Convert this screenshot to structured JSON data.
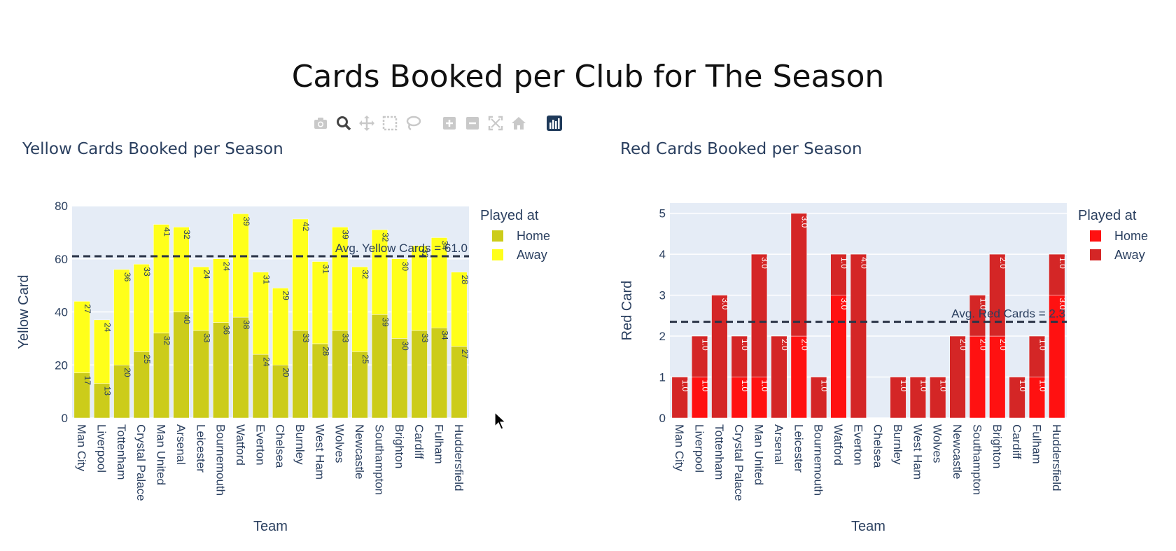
{
  "page_title": "Cards Booked per Club for The Season",
  "modebar": {
    "icons": [
      "camera-icon",
      "zoom-icon",
      "pan-icon",
      "box-select-icon",
      "lasso-icon",
      "zoom-in-icon",
      "zoom-out-icon",
      "autoscale-icon",
      "reset-axes-icon",
      "plotly-logo-icon"
    ]
  },
  "colors": {
    "yellow_home": "#cccc1a",
    "yellow_away": "#ffff1a",
    "red_home": "#ff1111",
    "red_away": "#d42626",
    "plot_bg": "#e5ecf6",
    "text": "#2a3f5f"
  },
  "chart_data": [
    {
      "type": "bar",
      "barmode": "stack",
      "title": "Yellow Cards Booked per Season",
      "xlabel": "Team",
      "ylabel": "Yellow Card",
      "ylim": [
        0,
        80
      ],
      "yticks": [
        "0",
        "20",
        "40",
        "60",
        "80"
      ],
      "legend_title": "Played at",
      "categories": [
        "Man City",
        "Liverpool",
        "Tottenham",
        "Crystal Palace",
        "Man United",
        "Arsenal",
        "Leicester",
        "Bournemouth",
        "Watford",
        "Everton",
        "Chelsea",
        "Burnley",
        "West Ham",
        "Wolves",
        "Newcastle",
        "Southampton",
        "Brighton",
        "Cardiff",
        "Fulham",
        "Huddersfield"
      ],
      "series": [
        {
          "name": "Home",
          "values": [
            17,
            13,
            20,
            25,
            32,
            40,
            33,
            36,
            38,
            24,
            20,
            33,
            28,
            33,
            25,
            39,
            30,
            33,
            34,
            27
          ]
        },
        {
          "name": "Away",
          "values": [
            27,
            24,
            36,
            33,
            41,
            32,
            24,
            24,
            39,
            31,
            29,
            42,
            31,
            39,
            32,
            32,
            30,
            32,
            34,
            28
          ]
        }
      ],
      "data_labels": [
        [
          "17",
          "13",
          "20",
          "25",
          "32",
          "40",
          "33",
          "36",
          "38",
          "24",
          "20",
          "33",
          "28",
          "33",
          "25",
          "39",
          "30",
          "33",
          "34",
          "27"
        ],
        [
          "27",
          "24",
          "36",
          "33",
          "41",
          "32",
          "24",
          "24",
          "39",
          "31",
          "29",
          "42",
          "31",
          "39",
          "32",
          "32",
          "30",
          "32",
          "34",
          "28"
        ]
      ],
      "average_line": {
        "value": 61.0,
        "label": "Avg. Yellow Cards = 61.0"
      }
    },
    {
      "type": "bar",
      "barmode": "stack",
      "title": "Red Cards Booked per Season",
      "xlabel": "Team",
      "ylabel": "Red Card",
      "ylim": [
        0,
        5.25
      ],
      "yticks": [
        "0",
        "1",
        "2",
        "3",
        "4",
        "5"
      ],
      "legend_title": "Played at",
      "categories": [
        "Man City",
        "Liverpool",
        "Tottenham",
        "Crystal Palace",
        "Man United",
        "Arsenal",
        "Leicester",
        "Bournemouth",
        "Watford",
        "Everton",
        "Chelsea",
        "Burnley",
        "West Ham",
        "Wolves",
        "Newcastle",
        "Southampton",
        "Brighton",
        "Cardiff",
        "Fulham",
        "Huddersfield"
      ],
      "series": [
        {
          "name": "Home",
          "values": [
            0,
            1,
            0,
            1,
            1,
            0,
            2,
            0,
            3,
            0,
            0,
            0,
            0,
            0,
            0,
            2,
            2,
            0,
            1,
            3
          ]
        },
        {
          "name": "Away",
          "values": [
            1,
            1,
            3,
            1,
            3,
            2,
            3,
            1,
            1,
            4,
            0,
            1,
            1,
            1,
            2,
            1,
            2,
            1,
            1,
            1
          ]
        }
      ],
      "data_labels": [
        [
          "",
          "1.0",
          "",
          "1.0",
          "1.0",
          "",
          "2.0",
          "",
          "3.0",
          "",
          "",
          "",
          "",
          "",
          "",
          "2.0",
          "2.0",
          "",
          "1.0",
          "3.0"
        ],
        [
          "1.0",
          "1.0",
          "3.0",
          "1.0",
          "3.0",
          "2.0",
          "3.0",
          "1.0",
          "1.0",
          "4.0",
          "",
          "1.0",
          "1.0",
          "1.0",
          "2.0",
          "1.0",
          "2.0",
          "1.0",
          "1.0",
          "1.0"
        ]
      ],
      "average_line": {
        "value": 2.35,
        "label": "Avg. Red Cards = 2.3"
      }
    }
  ]
}
